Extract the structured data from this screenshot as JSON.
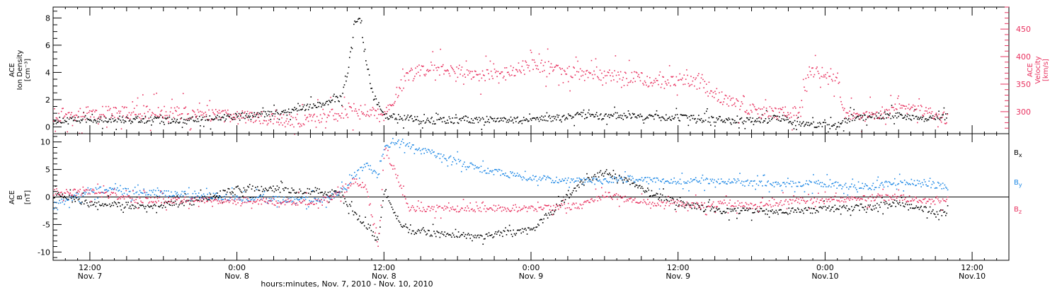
{
  "colors": {
    "black": "#000000",
    "red": "#e8315f",
    "blue": "#1e88e5"
  },
  "xaxis": {
    "label": "hours:minutes, Nov. 7, 2010 - Nov. 10, 2010",
    "ticks": [
      {
        "t": "12:00",
        "d": "Nov. 7",
        "h": 12
      },
      {
        "t": "0:00",
        "d": "Nov. 8",
        "h": 24
      },
      {
        "t": "12:00",
        "d": "Nov. 8",
        "h": 36
      },
      {
        "t": "0:00",
        "d": "Nov. 9",
        "h": 48
      },
      {
        "t": "12:00",
        "d": "Nov. 9",
        "h": 60
      },
      {
        "t": "0:00",
        "d": "Nov.10",
        "h": 72
      },
      {
        "t": "12:00",
        "d": "Nov.10",
        "h": 84
      }
    ],
    "range_hours": [
      9,
      87
    ]
  },
  "chart_data": [
    {
      "type": "scatter",
      "title": "",
      "x_units": "hours since Nov. 7, 2010 0:00",
      "left_axis": {
        "label": [
          "ACE",
          "Ion Density",
          "[cm⁻³]"
        ],
        "ylim": [
          -0.5,
          8.8
        ],
        "ticks": [
          0,
          2,
          4,
          6,
          8
        ]
      },
      "right_axis": {
        "label": [
          "ACE",
          "Velocity",
          "[km/s]"
        ],
        "ylim": [
          260,
          490
        ],
        "ticks": [
          300,
          350,
          400,
          450
        ]
      },
      "series": [
        {
          "name": "Ion Density",
          "color": "#000000",
          "axis": "left",
          "x": [
            9,
            14,
            20,
            24,
            28,
            31,
            32.5,
            33,
            33.5,
            34,
            34.5,
            35,
            36,
            40,
            44,
            48,
            52,
            56,
            60,
            63,
            66,
            68.5,
            70,
            73,
            74,
            76,
            78,
            80,
            82
          ],
          "y": [
            0.5,
            0.6,
            0.5,
            0.8,
            1.1,
            1.8,
            2.2,
            4.0,
            7.5,
            8.0,
            5.0,
            2.5,
            0.8,
            0.5,
            0.6,
            0.5,
            0.9,
            0.8,
            0.7,
            0.6,
            0.5,
            0.7,
            0.2,
            0.1,
            0.7,
            0.8,
            0.9,
            0.6,
            0.8
          ]
        },
        {
          "name": "Velocity",
          "color": "#e8315f",
          "axis": "right",
          "x": [
            9,
            14,
            18,
            22,
            26,
            28,
            30,
            32,
            33,
            34,
            35,
            36,
            37,
            38,
            40,
            42,
            44,
            46,
            48,
            50,
            52,
            56,
            58,
            60,
            62,
            64,
            66,
            67,
            68,
            70,
            70.5,
            71,
            72,
            73,
            73.5,
            74,
            76,
            78,
            80,
            82
          ],
          "y": [
            295,
            300,
            300,
            295,
            290,
            285,
            285,
            295,
            302,
            305,
            298,
            290,
            335,
            370,
            380,
            375,
            365,
            375,
            385,
            380,
            370,
            365,
            355,
            360,
            350,
            320,
            305,
            300,
            298,
            300,
            370,
            375,
            372,
            360,
            300,
            295,
            295,
            305,
            300,
            290
          ]
        }
      ]
    },
    {
      "type": "scatter",
      "title": "",
      "x_units": "hours since Nov. 7, 2010 0:00",
      "left_axis": {
        "label": [
          "ACE",
          "B",
          "[nT]"
        ],
        "ylim": [
          -11.5,
          11.5
        ],
        "ticks": [
          -10,
          -5,
          0,
          5,
          10
        ]
      },
      "legend_position": "right",
      "series": [
        {
          "name": "Bx",
          "color": "#000000",
          "x": [
            9,
            12,
            16,
            20,
            24,
            28,
            31,
            32.5,
            33.5,
            34.5,
            35.5,
            36,
            37,
            38,
            40,
            44,
            48,
            52,
            54,
            56,
            58,
            60,
            62,
            64,
            66,
            70,
            72,
            74,
            76,
            78,
            80,
            82
          ],
          "y": [
            0.5,
            -1.0,
            -1.5,
            -1.0,
            1.5,
            1.5,
            1.0,
            0.5,
            -3.0,
            -5.0,
            -8.0,
            2.0,
            -4.0,
            -6.0,
            -6.5,
            -7.0,
            -6.0,
            2.5,
            4.5,
            3.0,
            0.5,
            -1.0,
            -2.0,
            -2.5,
            -2.5,
            -2.5,
            -2.0,
            -2.0,
            -1.5,
            -1.0,
            -2.0,
            -3.0
          ]
        },
        {
          "name": "By",
          "color": "#1e88e5",
          "x": [
            9,
            12,
            16,
            20,
            24,
            28,
            31,
            32.5,
            33.5,
            34.5,
            35.5,
            36,
            37,
            38,
            40,
            44,
            48,
            52,
            54,
            56,
            58,
            60,
            62,
            64,
            66,
            70,
            72,
            74,
            76,
            78,
            80,
            82
          ],
          "y": [
            -1.5,
            1.5,
            1.0,
            0.5,
            0.0,
            -0.5,
            -0.5,
            1.0,
            4.0,
            6.0,
            4.0,
            9.0,
            10.0,
            9.5,
            8.0,
            5.0,
            3.5,
            3.0,
            3.0,
            3.5,
            3.0,
            3.0,
            3.0,
            3.0,
            2.5,
            2.5,
            2.5,
            2.0,
            2.0,
            3.0,
            2.5,
            2.0
          ]
        },
        {
          "name": "Bz",
          "color": "#e8315f",
          "x": [
            9,
            12,
            16,
            20,
            24,
            28,
            31,
            32.5,
            33.5,
            34.5,
            35.5,
            36,
            37,
            38,
            40,
            44,
            48,
            52,
            54,
            56,
            58,
            60,
            62,
            64,
            66,
            70,
            72,
            74,
            76,
            78,
            80,
            82
          ],
          "y": [
            1.0,
            1.0,
            -0.5,
            -0.5,
            -0.5,
            -0.8,
            -0.8,
            1.0,
            3.0,
            2.0,
            -9.0,
            9.0,
            4.0,
            -2.0,
            -2.0,
            -2.0,
            -2.0,
            -1.5,
            0.5,
            -0.5,
            -1.0,
            -1.0,
            -1.5,
            -1.0,
            -1.5,
            -0.5,
            -0.5,
            -0.5,
            0.0,
            0.0,
            -0.5,
            -0.8
          ]
        }
      ]
    }
  ]
}
